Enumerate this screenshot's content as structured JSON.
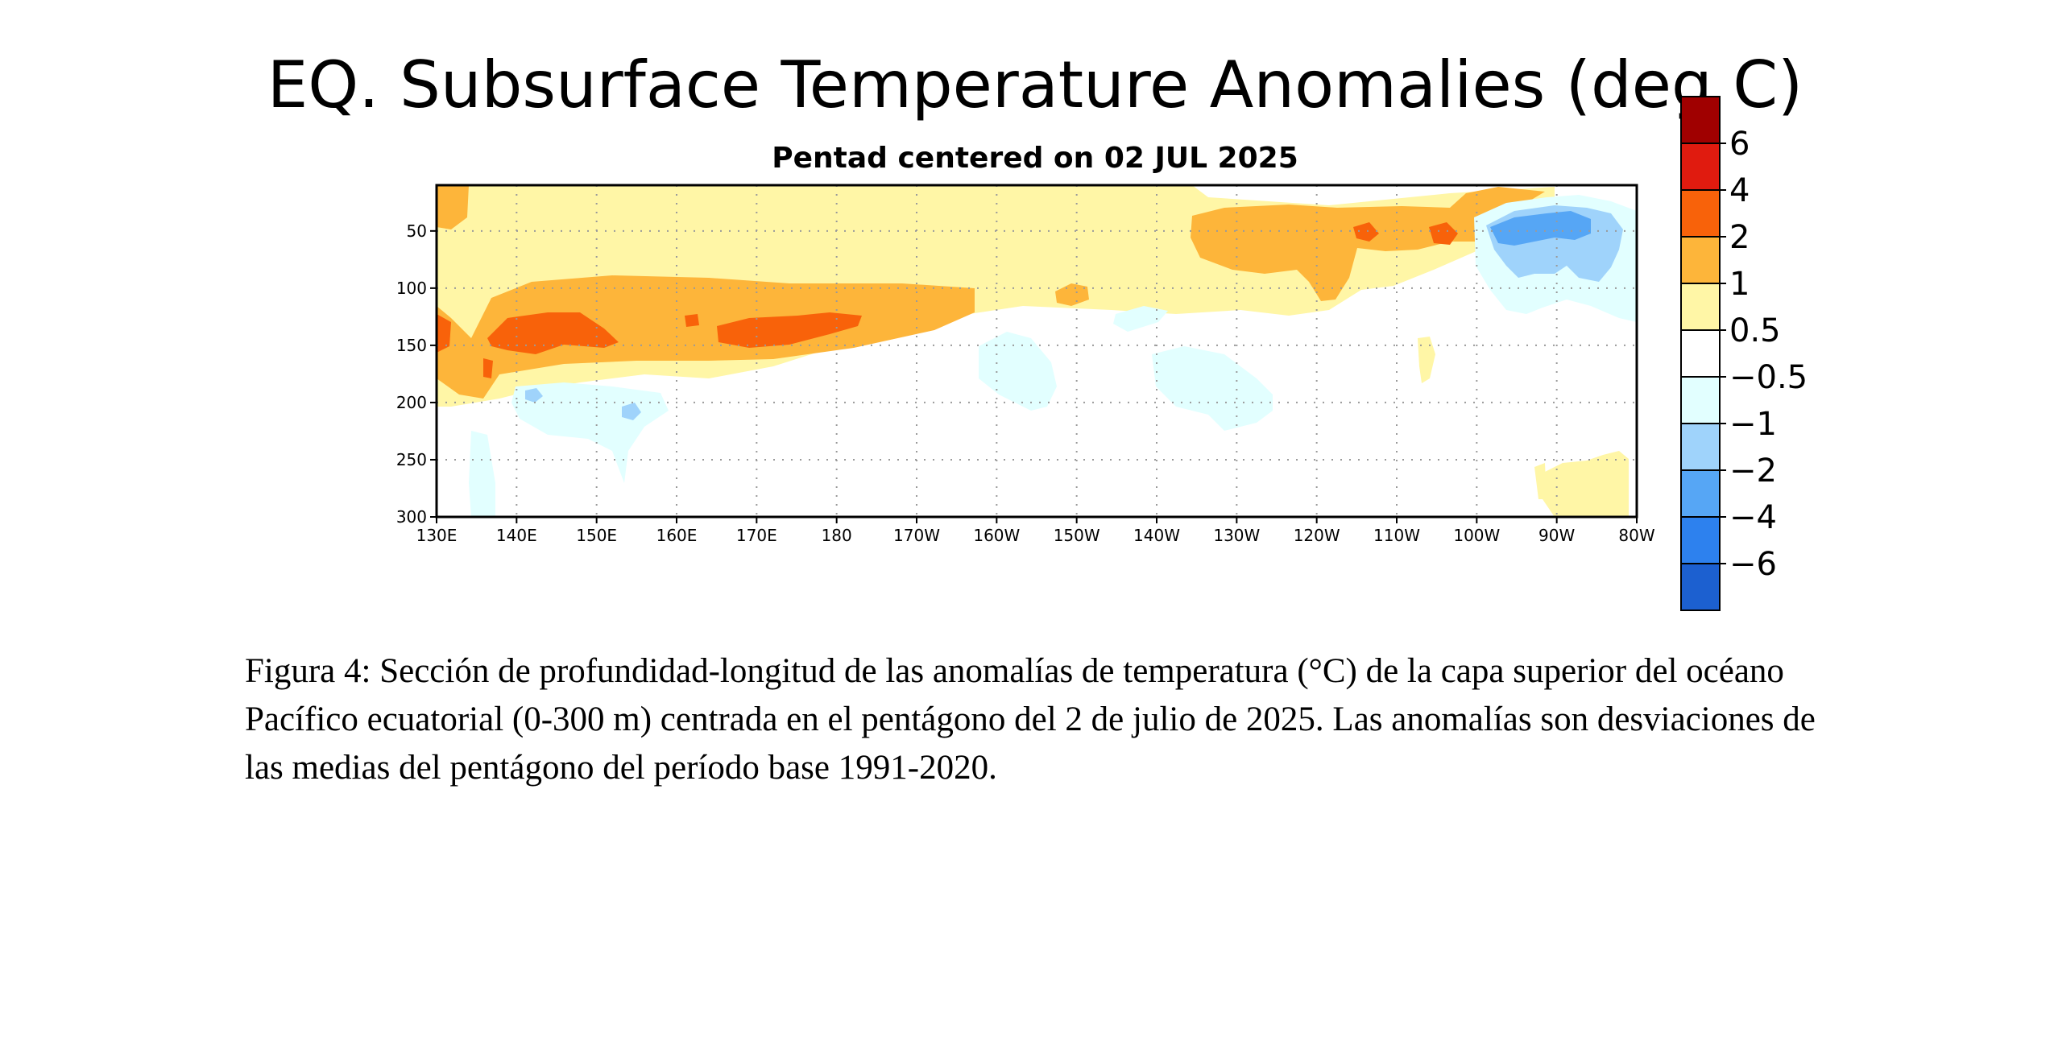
{
  "chart_data": {
    "type": "heatmap",
    "title": "EQ. Subsurface Temperature Anomalies (deg C)",
    "subtitle": "Pentad centered on 02 JUL 2025",
    "x_ticks": [
      "130E",
      "140E",
      "150E",
      "160E",
      "170E",
      "180",
      "170W",
      "160W",
      "150W",
      "140W",
      "130W",
      "120W",
      "110W",
      "100W",
      "90W",
      "80W"
    ],
    "y_ticks": [
      50,
      100,
      150,
      200,
      250,
      300
    ],
    "x_range": [
      "130E",
      "80W"
    ],
    "y_range": [
      10,
      300
    ],
    "grid": true,
    "colorbar": {
      "labels": [
        "6",
        "4",
        "2",
        "1",
        "0.5",
        "−0.5",
        "−1",
        "−2",
        "−4",
        "−6"
      ],
      "colors": [
        "#a00000",
        "#e01b0f",
        "#f8620a",
        "#fdb53a",
        "#fff6a6",
        "#ffffff",
        "#e2ffff",
        "#9fd3fb",
        "#56a6f5",
        "#2d81ee",
        "#1c60d0"
      ]
    },
    "anomaly_regions_approx": [
      {
        "level": "0.5 to 1",
        "lon_range": [
          "130E",
          "100W"
        ],
        "depth_range": [
          10,
          220
        ]
      },
      {
        "level": "1 to 2",
        "lon_range": [
          "135E",
          "170W"
        ],
        "depth_range": [
          90,
          200
        ]
      },
      {
        "level": "2 to 4",
        "lon_range": [
          "140E",
          "180"
        ],
        "depth_range": [
          110,
          160
        ]
      },
      {
        "level": "1 to 2",
        "lon_range": [
          "128W",
          "97W"
        ],
        "depth_range": [
          15,
          110
        ]
      },
      {
        "level": "-1 to -2",
        "lon_range": [
          "100W",
          "80W"
        ],
        "depth_range": [
          20,
          90
        ]
      },
      {
        "level": "-0.5 to -1",
        "lon_range": [
          "140E",
          "155E"
        ],
        "depth_range": [
          180,
          230
        ]
      },
      {
        "level": "-0.5 to -1",
        "lon_range": [
          "160W",
          "152W"
        ],
        "depth_range": [
          140,
          210
        ]
      },
      {
        "level": "-0.5 to -1",
        "lon_range": [
          "139W",
          "127W"
        ],
        "depth_range": [
          140,
          220
        ]
      },
      {
        "level": "0.5 to 1",
        "lon_range": [
          "90W",
          "80W"
        ],
        "depth_range": [
          240,
          300
        ]
      }
    ]
  },
  "caption": "Figura 4: Sección de profundidad-longitud de las anomalías de temperatura (°C) de la capa superior del océano Pacífico ecuatorial (0-300 m) centrada en el pentágono del 2 de julio de 2025. Las anomalías son desviaciones de las medias del pentágono del período base 1991-2020."
}
